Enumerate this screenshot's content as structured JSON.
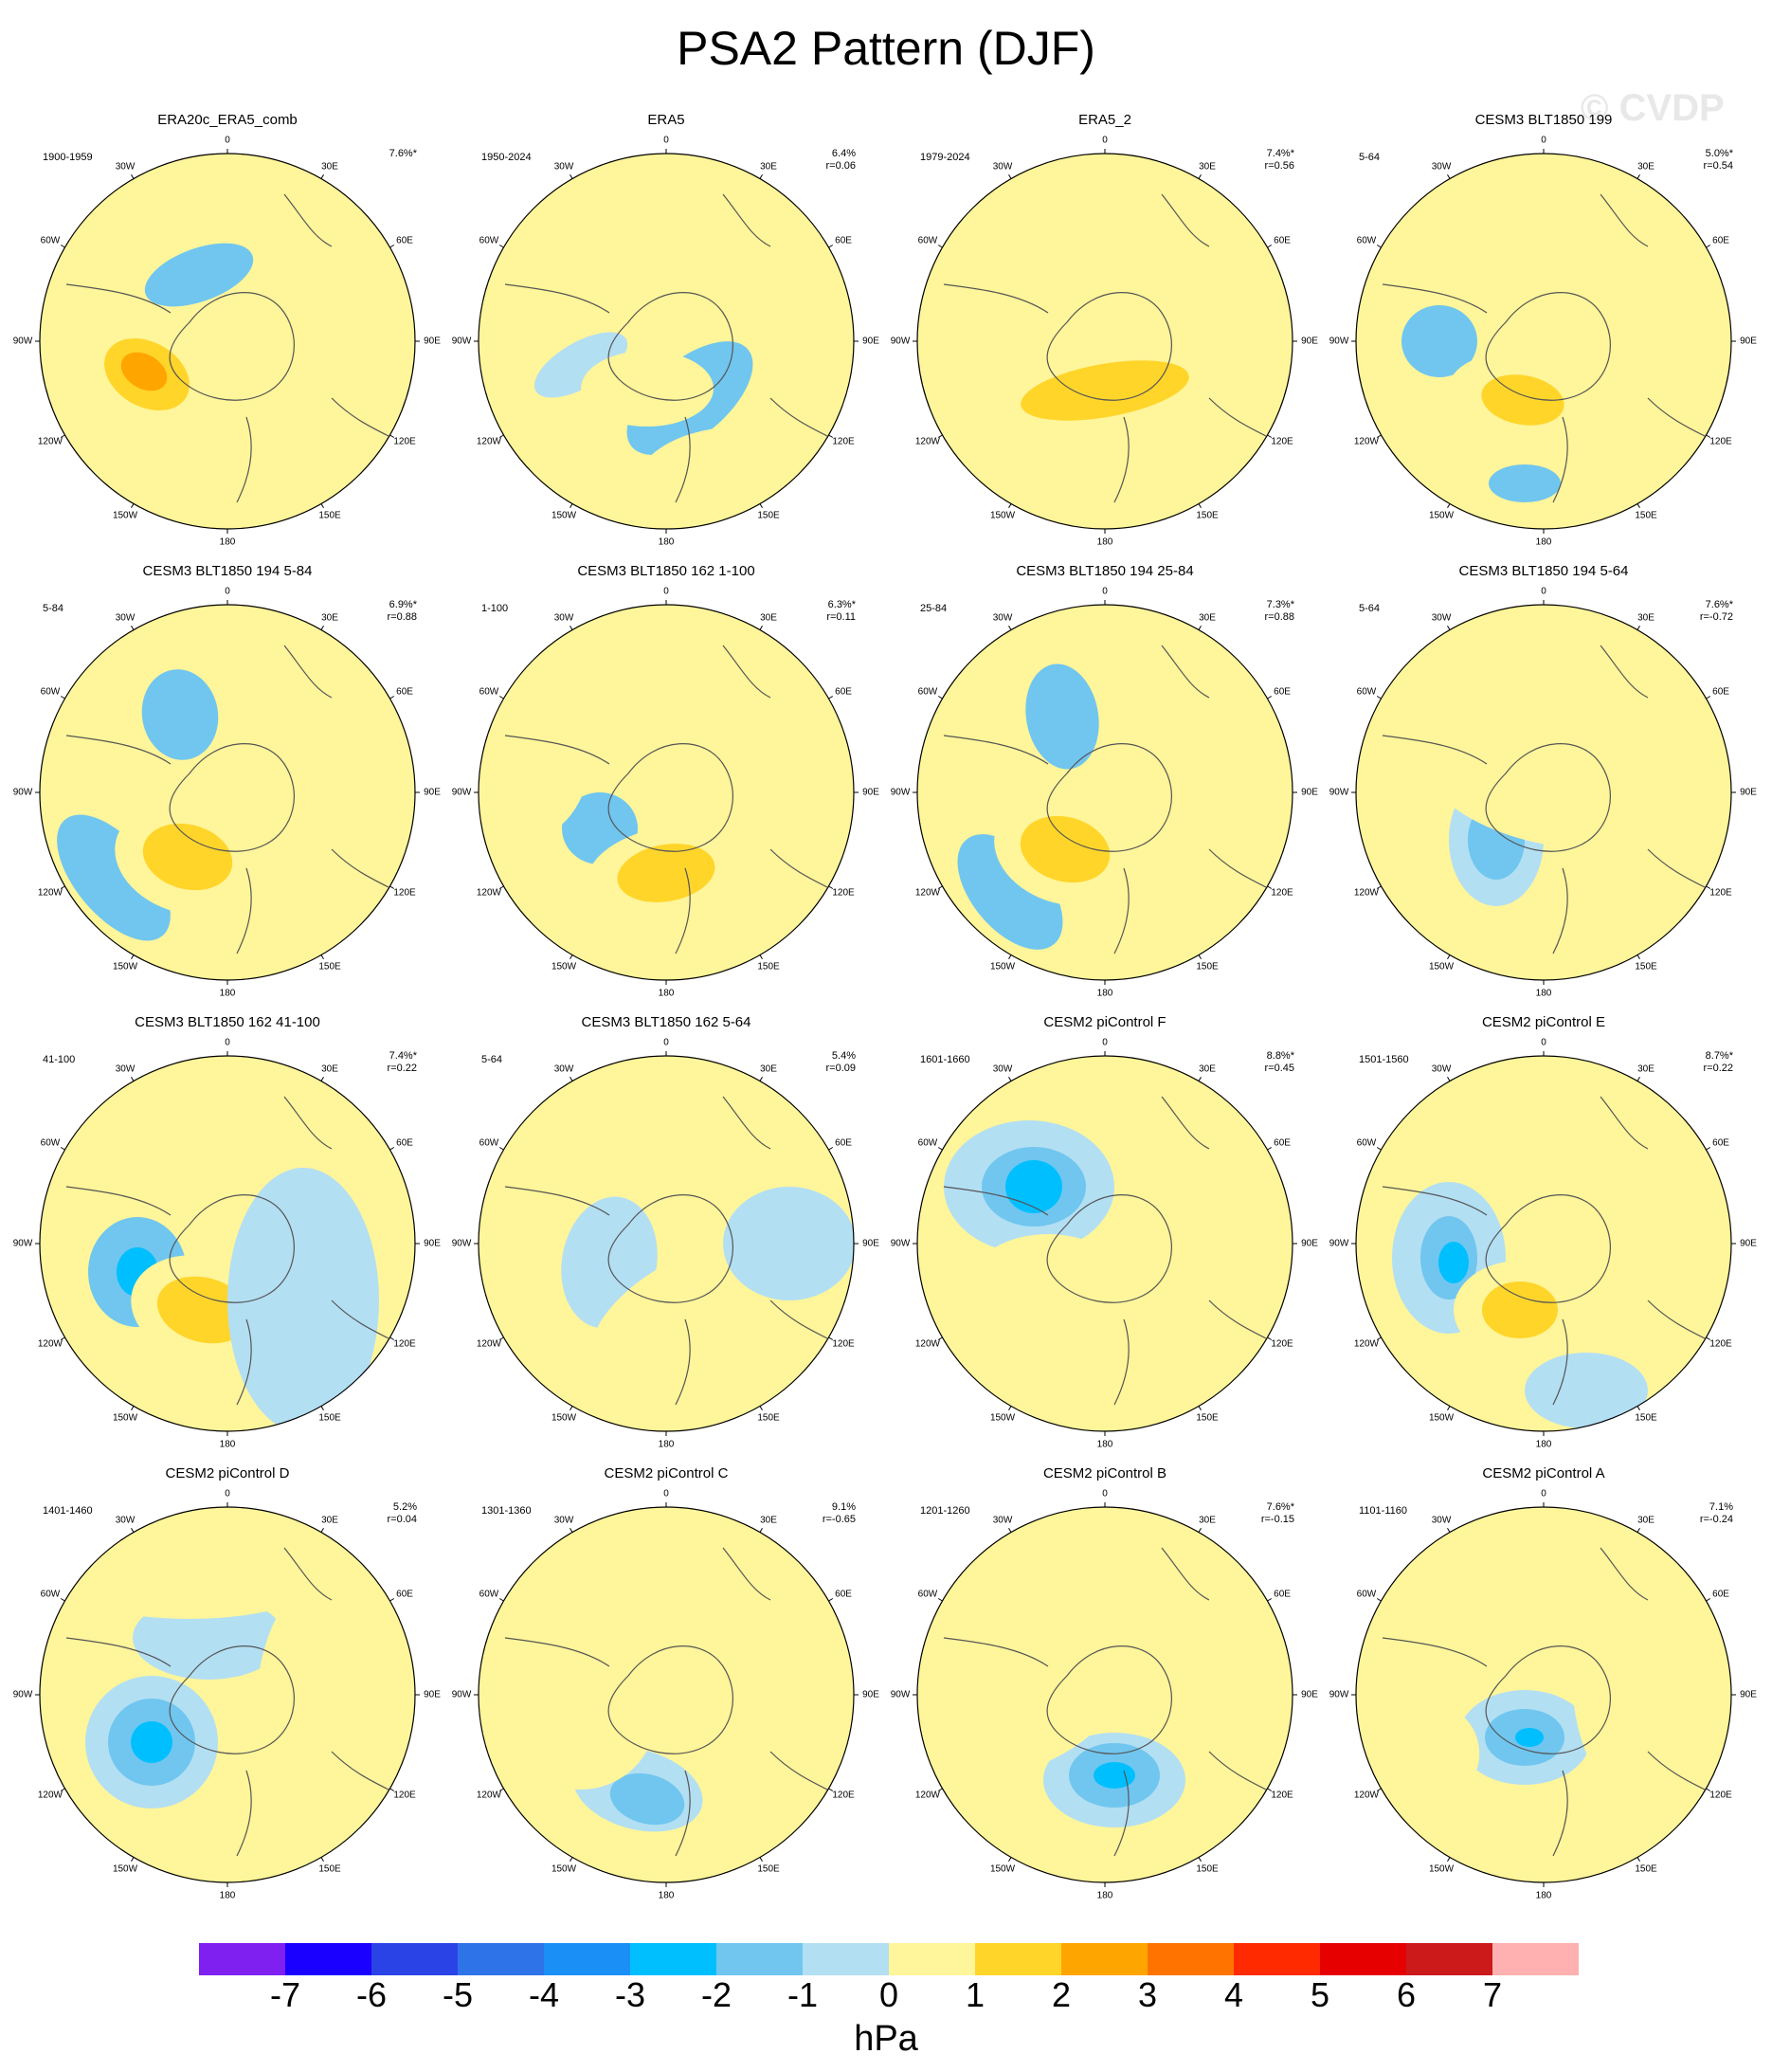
{
  "title": "PSA2 Pattern (DJF)",
  "watermark": "© CVDP",
  "longitude_labels": [
    "0",
    "30E",
    "60E",
    "90E",
    "120E",
    "150E",
    "180",
    "150W",
    "120W",
    "90W",
    "60W",
    "30W"
  ],
  "colorbar": {
    "unit": "hPa",
    "labels": [
      "-7",
      "-6",
      "-5",
      "-4",
      "-3",
      "-2",
      "-1",
      "0",
      "1",
      "2",
      "3",
      "4",
      "5",
      "6",
      "7"
    ],
    "colors": [
      "#7f1ff0",
      "#1a00ff",
      "#2a43e6",
      "#2f73e8",
      "#1a8ff5",
      "#00bfff",
      "#70c6ef",
      "#b3dff3",
      "#fff59a",
      "#ffd52a",
      "#ffa500",
      "#ff7300",
      "#ff2a00",
      "#e60000",
      "#cc1a1a",
      "#ffb0b0"
    ]
  },
  "panels": [
    {
      "title": "ERA20c_ERA5_comb",
      "years": "1900-1959",
      "pct": "7.6%*",
      "r": ""
    },
    {
      "title": "ERA5",
      "years": "1950-2024",
      "pct": "6.4%",
      "r": "r=0.06"
    },
    {
      "title": "ERA5_2",
      "years": "1979-2024",
      "pct": "7.4%*",
      "r": "r=0.56"
    },
    {
      "title": "CESM3 BLT1850 199",
      "years": "5-64",
      "pct": "5.0%*",
      "r": "r=0.54"
    },
    {
      "title": "CESM3 BLT1850 194 5-84",
      "years": "5-84",
      "pct": "6.9%*",
      "r": "r=0.88"
    },
    {
      "title": "CESM3 BLT1850 162 1-100",
      "years": "1-100",
      "pct": "6.3%*",
      "r": "r=0.11"
    },
    {
      "title": "CESM3 BLT1850 194 25-84",
      "years": "25-84",
      "pct": "7.3%*",
      "r": "r=0.88"
    },
    {
      "title": "CESM3 BLT1850 194 5-64",
      "years": "5-64",
      "pct": "7.6%*",
      "r": "r=-0.72"
    },
    {
      "title": "CESM3 BLT1850 162 41-100",
      "years": "41-100",
      "pct": "7.4%*",
      "r": "r=0.22"
    },
    {
      "title": "CESM3 BLT1850 162 5-64",
      "years": "5-64",
      "pct": "5.4%",
      "r": "r=0.09"
    },
    {
      "title": "CESM2 piControl F",
      "years": "1601-1660",
      "pct": "8.8%*",
      "r": "r=0.45"
    },
    {
      "title": "CESM2 piControl E",
      "years": "1501-1560",
      "pct": "8.7%*",
      "r": "r=0.22"
    },
    {
      "title": "CESM2 piControl D",
      "years": "1401-1460",
      "pct": "5.2%",
      "r": "r=0.04"
    },
    {
      "title": "CESM2 piControl C",
      "years": "1301-1360",
      "pct": "9.1%",
      "r": "r=-0.65"
    },
    {
      "title": "CESM2 piControl B",
      "years": "1201-1260",
      "pct": "7.6%*",
      "r": "r=-0.15"
    },
    {
      "title": "CESM2 piControl A",
      "years": "1101-1160",
      "pct": "7.1%",
      "r": "r=-0.24"
    }
  ]
}
